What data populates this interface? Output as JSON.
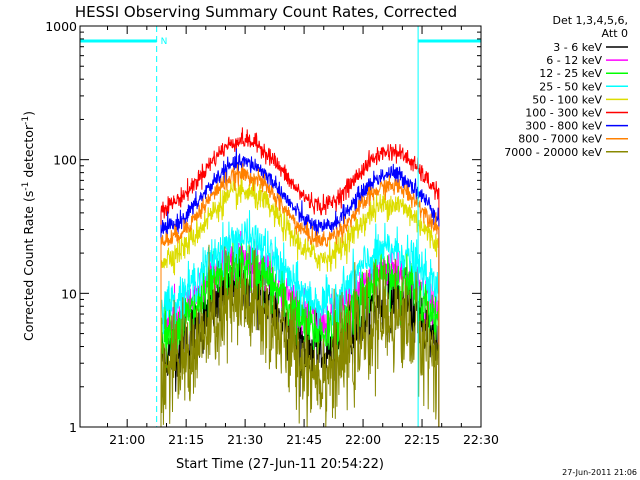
{
  "chart_data": {
    "type": "line",
    "title": "HESSI Observing Summary Count Rates, Corrected",
    "xlabel": "Start Time (27-Jun-11 20:54:22)",
    "ylabel_main": "Corrected Count Rate (s",
    "ylabel_sup1": "-1",
    "ylabel_mid": " detector",
    "ylabel_sup2": "-1",
    "ylabel_end": ")",
    "yscale": "log",
    "xlim_minutes": [
      -6,
      96
    ],
    "ylim": [
      1,
      1000
    ],
    "xticks": [
      {
        "min": 6,
        "label": "21:00"
      },
      {
        "min": 21,
        "label": "21:15"
      },
      {
        "min": 36,
        "label": "21:30"
      },
      {
        "min": 51,
        "label": "21:45"
      },
      {
        "min": 66,
        "label": "22:00"
      },
      {
        "min": 81,
        "label": "22:15"
      },
      {
        "min": 96,
        "label": "22:30"
      }
    ],
    "yticks": [
      {
        "value": 1,
        "label": "1"
      },
      {
        "value": 10,
        "label": "10"
      },
      {
        "value": 100,
        "label": "100"
      },
      {
        "value": 1000,
        "label": "1000"
      }
    ],
    "legend": {
      "header_line1": "Det 1,3,4,5,6,",
      "header_line2": "Att 0",
      "placement": "right"
    },
    "annotations": {
      "night_marker": "N",
      "timestamp": "27-Jun-2011 21:06"
    },
    "data_start_min": 14.6,
    "data_end_min": 85.3,
    "shape": {
      "peak1_min": 35.5,
      "peak1_width": 10.5,
      "peak2_min": 73.0,
      "peak2_width": 9.5,
      "baseline": 0.3,
      "peak2_ratio": 0.75
    },
    "night_intervals": [
      {
        "start_min": -6,
        "end_min": 13.5,
        "label": "N"
      },
      {
        "start_min": 80,
        "end_min": 96
      }
    ],
    "saa_dashed_lines_min": [
      13.5,
      96
    ],
    "series": [
      {
        "name": "3 - 6 keV",
        "color": "#000000",
        "peak": 11,
        "noise": 0.28
      },
      {
        "name": "6 - 12 keV",
        "color": "#ff00ff",
        "peak": 19,
        "noise": 0.18
      },
      {
        "name": "12 - 25 keV",
        "color": "#00ff00",
        "peak": 16,
        "noise": 0.25
      },
      {
        "name": "25 - 50 keV",
        "color": "#00ffff",
        "peak": 26,
        "noise": 0.18
      },
      {
        "name": "50 - 100 keV",
        "color": "#dddd00",
        "peak": 57,
        "noise": 0.12
      },
      {
        "name": "100 - 300 keV",
        "color": "#ff0000",
        "peak": 140,
        "noise": 0.08
      },
      {
        "name": "300 - 800 keV",
        "color": "#0000ff",
        "peak": 95,
        "noise": 0.08
      },
      {
        "name": "800 - 7000 keV",
        "color": "#ff8000",
        "peak": 77,
        "noise": 0.08
      },
      {
        "name": "7000 - 20000 keV",
        "color": "#888800",
        "peak": 8,
        "noise": 0.45
      }
    ]
  }
}
